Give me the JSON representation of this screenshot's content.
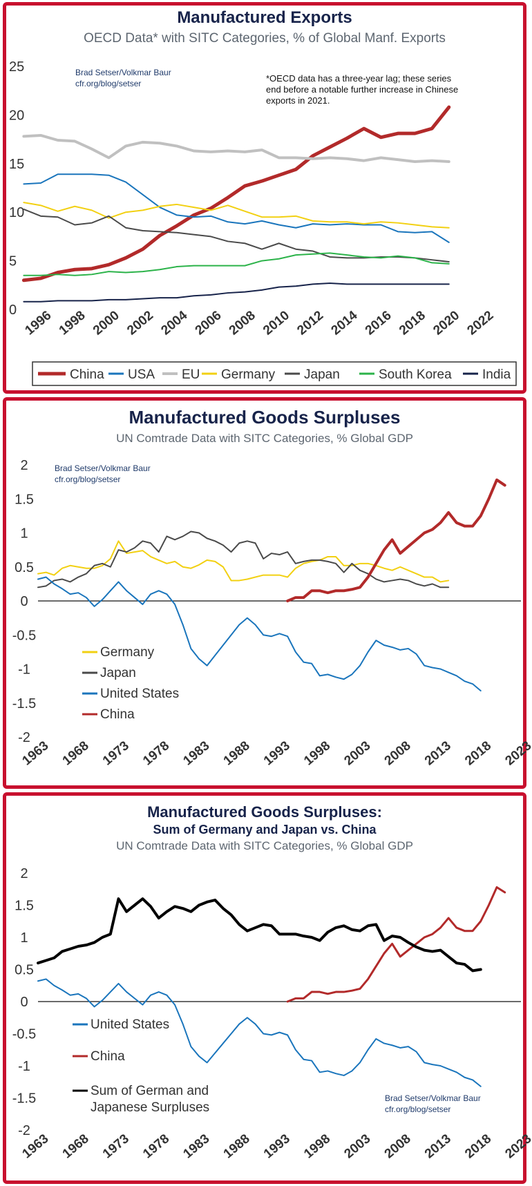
{
  "chart_data": [
    {
      "type": "line",
      "title": "Manufactured Exports",
      "subtitle": "OECD Data* with SITC Categories, % of Global Manf. Exports",
      "credit": [
        "Brad Setser/Volkmar Baur",
        "cfr.org/blog/setser"
      ],
      "note": [
        "*OECD data has a three-year lag; these series",
        "end before a notable further increase in Chinese",
        "exports in 2021."
      ],
      "xlim": [
        1996,
        2022
      ],
      "ylim": [
        0,
        25
      ],
      "xticks": [
        1996,
        1998,
        2000,
        2002,
        2004,
        2006,
        2008,
        2010,
        2012,
        2014,
        2016,
        2018,
        2020,
        2022
      ],
      "yticks": [
        0,
        5,
        10,
        15,
        20,
        25
      ],
      "legend_position": "bottom",
      "x": [
        1995,
        1996,
        1997,
        1998,
        1999,
        2000,
        2001,
        2002,
        2003,
        2004,
        2005,
        2006,
        2007,
        2008,
        2009,
        2010,
        2011,
        2012,
        2013,
        2014,
        2015,
        2016,
        2017,
        2018,
        2019,
        2020
      ],
      "series": [
        {
          "name": "China",
          "color": "#b22a2a",
          "width": 5,
          "values": [
            3.0,
            3.2,
            3.8,
            4.1,
            4.2,
            4.6,
            5.3,
            6.2,
            7.6,
            8.6,
            9.7,
            10.4,
            11.5,
            12.7,
            13.2,
            13.8,
            14.4,
            15.8,
            16.7,
            17.6,
            18.6,
            17.7,
            18.1,
            18.1,
            18.6,
            20.8
          ]
        },
        {
          "name": "USA",
          "color": "#1a75bc",
          "width": 2,
          "values": [
            12.9,
            13.0,
            13.9,
            13.9,
            13.9,
            13.8,
            13.1,
            11.8,
            10.5,
            9.7,
            9.5,
            9.6,
            9.0,
            8.8,
            9.1,
            8.7,
            8.4,
            8.8,
            8.7,
            8.8,
            8.7,
            8.7,
            8.0,
            7.9,
            8.0,
            6.9
          ]
        },
        {
          "name": "EU",
          "color": "#c0c0c0",
          "width": 4,
          "values": [
            17.8,
            17.9,
            17.4,
            17.3,
            16.5,
            15.6,
            16.8,
            17.2,
            17.1,
            16.8,
            16.3,
            16.2,
            16.3,
            16.2,
            16.4,
            15.6,
            15.6,
            15.5,
            15.6,
            15.5,
            15.3,
            15.6,
            15.4,
            15.2,
            15.3,
            15.2
          ]
        },
        {
          "name": "Germany",
          "color": "#f2d012",
          "width": 2,
          "values": [
            11.0,
            10.7,
            10.1,
            10.6,
            10.2,
            9.4,
            10.0,
            10.2,
            10.6,
            10.8,
            10.5,
            10.2,
            10.7,
            10.1,
            9.5,
            9.5,
            9.6,
            9.1,
            9.0,
            9.0,
            8.8,
            9.0,
            8.9,
            8.7,
            8.5,
            8.4
          ]
        },
        {
          "name": "Japan",
          "color": "#4a4a4a",
          "width": 2,
          "values": [
            10.3,
            9.6,
            9.5,
            8.7,
            8.9,
            9.6,
            8.4,
            8.1,
            8.0,
            7.9,
            7.7,
            7.5,
            7.0,
            6.8,
            6.2,
            6.8,
            6.2,
            6.0,
            5.4,
            5.3,
            5.3,
            5.4,
            5.4,
            5.3,
            5.1,
            4.9
          ]
        },
        {
          "name": "South Korea",
          "color": "#2cb34a",
          "width": 2,
          "values": [
            3.5,
            3.5,
            3.6,
            3.5,
            3.6,
            3.9,
            3.8,
            3.9,
            4.1,
            4.4,
            4.5,
            4.5,
            4.5,
            4.5,
            5.0,
            5.2,
            5.6,
            5.7,
            5.8,
            5.6,
            5.4,
            5.3,
            5.5,
            5.3,
            4.8,
            4.7
          ]
        },
        {
          "name": "India",
          "color": "#17234a",
          "width": 2,
          "values": [
            0.8,
            0.8,
            0.9,
            0.9,
            0.9,
            1.0,
            1.0,
            1.1,
            1.2,
            1.2,
            1.4,
            1.5,
            1.7,
            1.8,
            2.0,
            2.3,
            2.4,
            2.6,
            2.7,
            2.6,
            2.6,
            2.6,
            2.6,
            2.6,
            2.6,
            2.6
          ]
        }
      ]
    },
    {
      "type": "line",
      "title": "Manufactured Goods Surpluses",
      "subtitle": "UN Comtrade Data with SITC Categories, % Global GDP",
      "credit": [
        "Brad Setser/Volkmar Baur",
        "cfr.org/blog/setser"
      ],
      "xlim": [
        1963,
        2023
      ],
      "ylim": [
        -2,
        2
      ],
      "xticks": [
        1963,
        1968,
        1973,
        1978,
        1983,
        1988,
        1993,
        1998,
        2003,
        2008,
        2013,
        2018,
        2023
      ],
      "yticks": [
        2,
        1.5,
        1,
        0.5,
        0,
        -0.5,
        -1,
        -1.5,
        -2
      ],
      "legend_position": "bottom-left",
      "x_start": 1963,
      "series": [
        {
          "name": "Germany",
          "color": "#f2d012",
          "width": 2,
          "values": [
            0.4,
            0.42,
            0.38,
            0.48,
            0.52,
            0.5,
            0.48,
            0.48,
            0.52,
            0.62,
            0.88,
            0.7,
            0.72,
            0.74,
            0.65,
            0.6,
            0.55,
            0.58,
            0.5,
            0.48,
            0.53,
            0.6,
            0.58,
            0.5,
            0.3,
            0.3,
            0.32,
            0.35,
            0.38,
            0.38,
            0.38,
            0.35,
            0.48,
            0.55,
            0.58,
            0.6,
            0.65,
            0.65,
            0.52,
            0.52,
            0.55,
            0.55,
            0.52,
            0.48,
            0.45,
            0.5,
            0.45,
            0.4,
            0.35,
            0.35,
            0.28,
            0.3
          ]
        },
        {
          "name": "Japan",
          "color": "#4a4a4a",
          "width": 2,
          "values": [
            0.2,
            0.22,
            0.3,
            0.32,
            0.28,
            0.35,
            0.4,
            0.52,
            0.55,
            0.5,
            0.75,
            0.72,
            0.78,
            0.88,
            0.85,
            0.72,
            0.95,
            0.9,
            0.95,
            1.02,
            1.0,
            0.92,
            0.88,
            0.82,
            0.72,
            0.85,
            0.88,
            0.85,
            0.62,
            0.7,
            0.68,
            0.72,
            0.55,
            0.58,
            0.6,
            0.6,
            0.58,
            0.55,
            0.42,
            0.55,
            0.45,
            0.4,
            0.32,
            0.28,
            0.3,
            0.32,
            0.3,
            0.25,
            0.22,
            0.25,
            0.2,
            0.2
          ]
        },
        {
          "name": "United States",
          "color": "#1a75bc",
          "width": 2,
          "values": [
            0.32,
            0.35,
            0.25,
            0.18,
            0.1,
            0.12,
            0.05,
            -0.08,
            0.02,
            0.15,
            0.28,
            0.15,
            0.05,
            -0.05,
            0.1,
            0.15,
            0.1,
            -0.05,
            -0.35,
            -0.7,
            -0.85,
            -0.95,
            -0.8,
            -0.65,
            -0.5,
            -0.35,
            -0.25,
            -0.35,
            -0.5,
            -0.52,
            -0.48,
            -0.52,
            -0.75,
            -0.9,
            -0.92,
            -1.1,
            -1.08,
            -1.12,
            -1.15,
            -1.08,
            -0.95,
            -0.75,
            -0.58,
            -0.65,
            -0.68,
            -0.72,
            -0.7,
            -0.78,
            -0.95,
            -0.98,
            -1.0,
            -1.05,
            -1.1,
            -1.18,
            -1.22,
            -1.32
          ]
        },
        {
          "name": "China",
          "color": "#b22a2a",
          "width": 4,
          "x_start": 1994,
          "values": [
            0.0,
            0.05,
            0.05,
            0.15,
            0.15,
            0.12,
            0.15,
            0.15,
            0.17,
            0.2,
            0.35,
            0.55,
            0.75,
            0.9,
            0.7,
            0.8,
            0.9,
            1.0,
            1.05,
            1.15,
            1.3,
            1.15,
            1.1,
            1.1,
            1.25,
            1.5,
            1.78,
            1.7
          ]
        }
      ]
    },
    {
      "type": "line",
      "title": "Manufactured Goods Surpluses:",
      "title2": "Sum of Germany and Japan vs. China",
      "subtitle": "UN Comtrade Data with SITC Categories, % Global GDP",
      "credit": [
        "Brad Setser/Volkmar Baur",
        "cfr.org/blog/setser"
      ],
      "xlim": [
        1963,
        2023
      ],
      "ylim": [
        -2,
        2
      ],
      "xticks": [
        1963,
        1968,
        1973,
        1978,
        1983,
        1988,
        1993,
        1998,
        2003,
        2008,
        2013,
        2018,
        2023
      ],
      "yticks": [
        2,
        1.5,
        1,
        0.5,
        0,
        -0.5,
        -1,
        -1.5,
        -2
      ],
      "legend_position": "bottom-left",
      "x_start": 1963,
      "series": [
        {
          "name": "United States",
          "color": "#1a75bc",
          "width": 2,
          "values": [
            0.32,
            0.35,
            0.25,
            0.18,
            0.1,
            0.12,
            0.05,
            -0.08,
            0.02,
            0.15,
            0.28,
            0.15,
            0.05,
            -0.05,
            0.1,
            0.15,
            0.1,
            -0.05,
            -0.35,
            -0.7,
            -0.85,
            -0.95,
            -0.8,
            -0.65,
            -0.5,
            -0.35,
            -0.25,
            -0.35,
            -0.5,
            -0.52,
            -0.48,
            -0.52,
            -0.75,
            -0.9,
            -0.92,
            -1.1,
            -1.08,
            -1.12,
            -1.15,
            -1.08,
            -0.95,
            -0.75,
            -0.58,
            -0.65,
            -0.68,
            -0.72,
            -0.7,
            -0.78,
            -0.95,
            -0.98,
            -1.0,
            -1.05,
            -1.1,
            -1.18,
            -1.22,
            -1.32
          ]
        },
        {
          "name": "China",
          "color": "#b22a2a",
          "width": 3,
          "x_start": 1994,
          "values": [
            0.0,
            0.05,
            0.05,
            0.15,
            0.15,
            0.12,
            0.15,
            0.15,
            0.17,
            0.2,
            0.35,
            0.55,
            0.75,
            0.9,
            0.7,
            0.8,
            0.9,
            1.0,
            1.05,
            1.15,
            1.3,
            1.15,
            1.1,
            1.1,
            1.25,
            1.5,
            1.78,
            1.7
          ]
        },
        {
          "name": "Sum of German and Japanese Surpluses",
          "legend_lines": [
            "Sum of German and",
            "Japanese Surpluses"
          ],
          "color": "#000000",
          "width": 4,
          "values": [
            0.6,
            0.64,
            0.68,
            0.78,
            0.82,
            0.86,
            0.88,
            0.92,
            1.0,
            1.05,
            1.6,
            1.4,
            1.5,
            1.6,
            1.48,
            1.3,
            1.4,
            1.48,
            1.45,
            1.4,
            1.5,
            1.55,
            1.58,
            1.45,
            1.35,
            1.2,
            1.1,
            1.15,
            1.2,
            1.18,
            1.05,
            1.05,
            1.05,
            1.02,
            1.0,
            0.95,
            1.08,
            1.15,
            1.18,
            1.12,
            1.1,
            1.18,
            1.2,
            0.95,
            1.02,
            1.0,
            0.92,
            0.85,
            0.8,
            0.78,
            0.8,
            0.7,
            0.6,
            0.58,
            0.48,
            0.5
          ]
        }
      ]
    }
  ]
}
